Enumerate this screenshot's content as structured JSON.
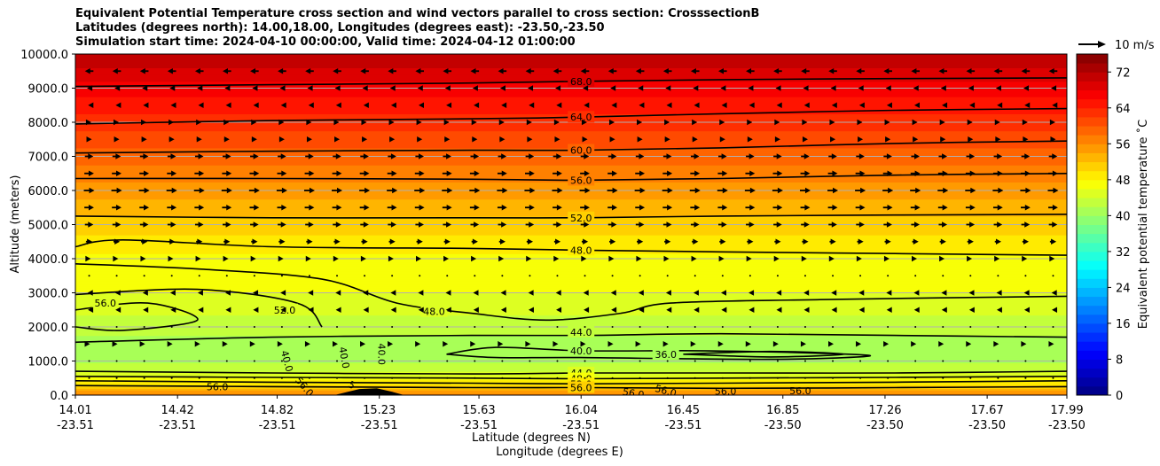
{
  "titles": {
    "line1": "Equivalent Potential Temperature cross section and wind vectors parallel to cross section: CrosssectionB",
    "line2": "Latitudes (degrees north): 14.00,18.00, Longitudes (degrees east): -23.50,-23.50",
    "line3": "Simulation start time: 2024-04-10 00:00:00, Valid time: 2024-04-12 01:00:00"
  },
  "chart_data": {
    "type": "heatmap",
    "subtype": "contourf cross section with contour lines and wind vectors",
    "ylabel": "Altitude (meters)",
    "xlabel": "Latitude (degrees N)",
    "xlabel2": "Longitude (degrees E)",
    "ylim": [
      0,
      10000
    ],
    "xlim": [
      14.01,
      17.99
    ],
    "y_ticks": [
      0,
      1000,
      2000,
      3000,
      4000,
      5000,
      6000,
      7000,
      8000,
      9000,
      10000
    ],
    "y_tick_labels": [
      "0.0",
      "1000.0",
      "2000.0",
      "3000.0",
      "4000.0",
      "5000.0",
      "6000.0",
      "7000.0",
      "8000.0",
      "9000.0",
      "10000.0"
    ],
    "x_ticks": [
      {
        "lat": 14.01,
        "lat_label": "14.01",
        "lon_label": "-23.51"
      },
      {
        "lat": 14.42,
        "lat_label": "14.42",
        "lon_label": "-23.51"
      },
      {
        "lat": 14.82,
        "lat_label": "14.82",
        "lon_label": "-23.51"
      },
      {
        "lat": 15.23,
        "lat_label": "15.23",
        "lon_label": "-23.51"
      },
      {
        "lat": 15.63,
        "lat_label": "15.63",
        "lon_label": "-23.51"
      },
      {
        "lat": 16.04,
        "lat_label": "16.04",
        "lon_label": "-23.51"
      },
      {
        "lat": 16.45,
        "lat_label": "16.45",
        "lon_label": "-23.51"
      },
      {
        "lat": 16.85,
        "lat_label": "16.85",
        "lon_label": "-23.50"
      },
      {
        "lat": 17.26,
        "lat_label": "17.26",
        "lon_label": "-23.50"
      },
      {
        "lat": 17.67,
        "lat_label": "17.67",
        "lon_label": "-23.50"
      },
      {
        "lat": 17.99,
        "lat_label": "17.99",
        "lon_label": "-23.50"
      }
    ],
    "colorbar": {
      "label": "Equivalent potential temperature ˚C",
      "min": 0,
      "max": 76,
      "step": 2,
      "ticks": [
        0,
        8,
        16,
        24,
        32,
        40,
        48,
        56,
        64,
        72
      ],
      "tick_labels": [
        "0",
        "8",
        "16",
        "24",
        "32",
        "40",
        "48",
        "56",
        "64",
        "72"
      ]
    },
    "quiver_key": {
      "label": "10 m/s",
      "speed": 10
    },
    "theta_e_profile": [
      {
        "alt": 0,
        "value": 57
      },
      {
        "alt": 300,
        "value": 50
      },
      {
        "alt": 700,
        "value": 44
      },
      {
        "alt": 1200,
        "value": 40
      },
      {
        "alt": 2000,
        "value": 43
      },
      {
        "alt": 3000,
        "value": 46
      },
      {
        "alt": 4000,
        "value": 47.5
      },
      {
        "alt": 5000,
        "value": 51
      },
      {
        "alt": 6000,
        "value": 55
      },
      {
        "alt": 7000,
        "value": 59
      },
      {
        "alt": 8000,
        "value": 63
      },
      {
        "alt": 9000,
        "value": 67
      },
      {
        "alt": 10000,
        "value": 72
      }
    ],
    "contours": [
      {
        "level": "68.0",
        "points": [
          [
            14.01,
            9050
          ],
          [
            14.8,
            9100
          ],
          [
            15.6,
            9150
          ],
          [
            16.04,
            9200
          ],
          [
            16.6,
            9250
          ],
          [
            17.3,
            9280
          ],
          [
            17.99,
            9300
          ]
        ],
        "label_at": [
          16.04,
          9200
        ]
      },
      {
        "level": "64.0",
        "points": [
          [
            14.01,
            7950
          ],
          [
            14.8,
            8050
          ],
          [
            15.6,
            8100
          ],
          [
            16.04,
            8150
          ],
          [
            16.6,
            8250
          ],
          [
            17.3,
            8350
          ],
          [
            17.99,
            8400
          ]
        ],
        "label_at": [
          16.04,
          8150
        ]
      },
      {
        "level": "60.0",
        "points": [
          [
            14.01,
            7100
          ],
          [
            14.8,
            7150
          ],
          [
            15.6,
            7180
          ],
          [
            16.04,
            7180
          ],
          [
            16.6,
            7250
          ],
          [
            17.3,
            7380
          ],
          [
            17.99,
            7450
          ]
        ],
        "label_at": [
          16.04,
          7180
        ]
      },
      {
        "level": "56.0",
        "points": [
          [
            14.01,
            6350
          ],
          [
            14.8,
            6350
          ],
          [
            15.6,
            6330
          ],
          [
            16.04,
            6300
          ],
          [
            16.6,
            6350
          ],
          [
            17.3,
            6450
          ],
          [
            17.99,
            6500
          ]
        ],
        "label_at": [
          16.04,
          6300
        ]
      },
      {
        "level": "52.0",
        "points": [
          [
            14.01,
            5250
          ],
          [
            14.8,
            5200
          ],
          [
            15.6,
            5200
          ],
          [
            16.04,
            5200
          ],
          [
            16.6,
            5250
          ],
          [
            17.3,
            5280
          ],
          [
            17.99,
            5300
          ]
        ],
        "label_at": [
          16.04,
          5200
        ]
      },
      {
        "level": "48.0",
        "points": [
          [
            14.01,
            4350
          ],
          [
            14.2,
            4550
          ],
          [
            14.8,
            4350
          ],
          [
            15.6,
            4300
          ],
          [
            16.04,
            4250
          ],
          [
            16.6,
            4200
          ],
          [
            17.3,
            4150
          ],
          [
            17.99,
            4100
          ]
        ],
        "label_at": [
          16.04,
          4250
        ]
      },
      {
        "level": "48.0",
        "points": [
          [
            14.01,
            3850
          ],
          [
            14.5,
            3700
          ],
          [
            15.0,
            3400
          ],
          [
            15.3,
            2700
          ],
          [
            15.6,
            2400
          ],
          [
            15.9,
            2200
          ],
          [
            16.2,
            2400
          ],
          [
            16.4,
            2700
          ],
          [
            17.0,
            2800
          ],
          [
            17.99,
            2900
          ]
        ],
        "label_at": [
          15.45,
          2450
        ]
      },
      {
        "level": "52.0",
        "points": [
          [
            14.01,
            2950
          ],
          [
            14.5,
            3100
          ],
          [
            14.9,
            2700
          ],
          [
            15.0,
            2000
          ]
        ],
        "label_at": [
          14.85,
          2500
        ]
      },
      {
        "level": "56.0",
        "points": [
          [
            14.01,
            2500
          ],
          [
            14.3,
            2700
          ],
          [
            14.5,
            2200
          ],
          [
            14.2,
            1900
          ],
          [
            14.01,
            2000
          ]
        ],
        "label_at": [
          14.13,
          2700
        ]
      },
      {
        "level": "44.0",
        "points": [
          [
            14.01,
            1550
          ],
          [
            14.8,
            1700
          ],
          [
            15.6,
            1750
          ],
          [
            16.04,
            1750
          ],
          [
            16.6,
            1800
          ],
          [
            17.3,
            1750
          ],
          [
            17.99,
            1700
          ]
        ],
        "label_at": [
          16.04,
          1850
        ]
      },
      {
        "level": "40.0",
        "points": [
          [
            15.5,
            1200
          ],
          [
            15.7,
            1400
          ],
          [
            16.04,
            1300
          ],
          [
            16.5,
            1300
          ],
          [
            16.9,
            1250
          ],
          [
            17.2,
            1150
          ],
          [
            16.8,
            1050
          ],
          [
            16.04,
            1100
          ],
          [
            15.7,
            1100
          ],
          [
            15.5,
            1200
          ]
        ],
        "label_at": [
          16.04,
          1300
        ]
      },
      {
        "level": "36.0",
        "points": [
          [
            16.45,
            1200
          ],
          [
            16.8,
            1280
          ],
          [
            17.1,
            1200
          ],
          [
            16.8,
            1120
          ],
          [
            16.45,
            1200
          ]
        ],
        "label_at": [
          16.38,
          1200
        ]
      },
      {
        "level": "44.0",
        "points": [
          [
            14.01,
            700
          ],
          [
            14.8,
            650
          ],
          [
            15.6,
            620
          ],
          [
            16.04,
            650
          ],
          [
            16.6,
            650
          ],
          [
            17.3,
            650
          ],
          [
            17.99,
            700
          ]
        ],
        "label_at": [
          16.04,
          650
        ]
      },
      {
        "level": "48.0",
        "points": [
          [
            14.01,
            550
          ],
          [
            14.8,
            520
          ],
          [
            15.6,
            500
          ],
          [
            16.04,
            480
          ],
          [
            16.6,
            500
          ],
          [
            17.3,
            520
          ],
          [
            17.99,
            550
          ]
        ],
        "label_at": [
          16.04,
          480
        ]
      },
      {
        "level": "52.0",
        "points": [
          [
            14.01,
            420
          ],
          [
            14.8,
            380
          ],
          [
            15.6,
            350
          ],
          [
            16.04,
            330
          ],
          [
            16.6,
            350
          ],
          [
            17.3,
            380
          ],
          [
            17.99,
            420
          ]
        ],
        "label_at": [
          16.04,
          330
        ]
      },
      {
        "level": "56.0",
        "points": [
          [
            14.01,
            280
          ],
          [
            14.8,
            250
          ],
          [
            15.6,
            220
          ],
          [
            16.04,
            220
          ],
          [
            16.6,
            200
          ],
          [
            17.3,
            220
          ],
          [
            17.99,
            250
          ]
        ],
        "label_at": [
          16.04,
          220
        ]
      }
    ],
    "extra_labels": [
      {
        "text": "40.0",
        "lat": 14.86,
        "alt": 1000,
        "rotate": 75
      },
      {
        "text": "40.0",
        "lat": 15.09,
        "alt": 1100,
        "rotate": 80
      },
      {
        "text": "40.0",
        "lat": 15.24,
        "alt": 1200,
        "rotate": 90
      },
      {
        "text": "56.0",
        "lat": 14.58,
        "alt": 250,
        "rotate": 0
      },
      {
        "text": "56.0",
        "lat": 14.93,
        "alt": 250,
        "rotate": 50
      },
      {
        "text": "5",
        "lat": 15.12,
        "alt": 300,
        "rotate": 30
      },
      {
        "text": "56.0",
        "lat": 16.25,
        "alt": 60,
        "rotate": 10
      },
      {
        "text": "56.0",
        "lat": 16.38,
        "alt": 130,
        "rotate": 15
      },
      {
        "text": "56.0",
        "lat": 16.62,
        "alt": 120,
        "rotate": 0
      },
      {
        "text": "56.0",
        "lat": 16.92,
        "alt": 130,
        "rotate": 0
      }
    ],
    "terrain": {
      "points": [
        [
          15.05,
          0
        ],
        [
          15.15,
          180
        ],
        [
          15.22,
          200
        ],
        [
          15.28,
          100
        ],
        [
          15.33,
          0
        ]
      ]
    },
    "wind_rows": [
      {
        "alt": 9500,
        "u": -4
      },
      {
        "alt": 9000,
        "u": -2
      },
      {
        "alt": 8500,
        "u": -1
      },
      {
        "alt": 8000,
        "u": 2
      },
      {
        "alt": 7500,
        "u": 2.5
      },
      {
        "alt": 7000,
        "u": 4
      },
      {
        "alt": 6500,
        "u": 4.5
      },
      {
        "alt": 6000,
        "u": 5
      },
      {
        "alt": 5500,
        "u": 4.5
      },
      {
        "alt": 5000,
        "u": 4
      },
      {
        "alt": 4500,
        "u": 3
      },
      {
        "alt": 4000,
        "u": 1.5
      },
      {
        "alt": 3500,
        "u": -0.6
      },
      {
        "alt": 3000,
        "u": -1.5
      },
      {
        "alt": 2500,
        "u": -1.2
      },
      {
        "alt": 2000,
        "u": -0.5
      },
      {
        "alt": 1500,
        "u": 0.8
      },
      {
        "alt": 1000,
        "u": 0.5
      },
      {
        "alt": 500,
        "u": 0.4
      }
    ],
    "wind_columns_count": 36
  }
}
